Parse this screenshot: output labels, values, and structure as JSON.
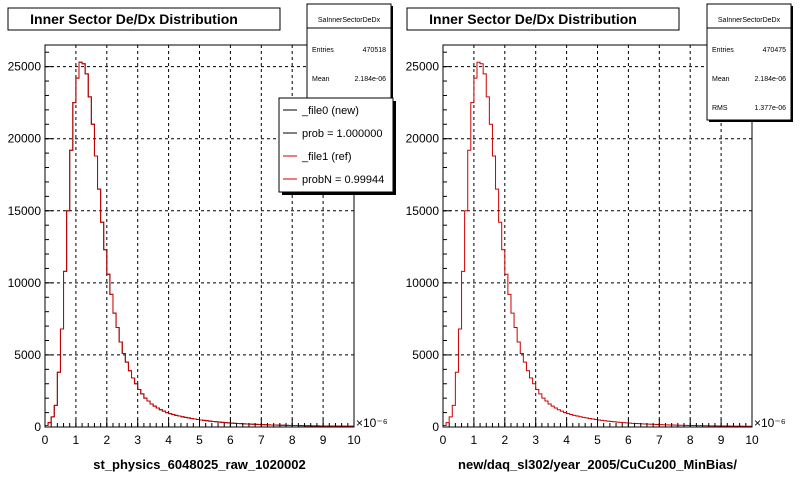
{
  "footer_text": "",
  "chart_data": [
    {
      "type": "histogram",
      "title": "Inner Sector De/Dx Distribution",
      "xlabel": "st_physics_6048025_raw_1020002",
      "ylabel": "",
      "x_exponent": "×10⁻⁶",
      "xlim": [
        0,
        10
      ],
      "ylim": [
        0,
        26500
      ],
      "xticks": [
        "0",
        "1",
        "2",
        "3",
        "4",
        "5",
        "6",
        "7",
        "8",
        "9",
        "10"
      ],
      "yticks": [
        "0",
        "5000",
        "10000",
        "15000",
        "20000",
        "25000"
      ],
      "grid": true,
      "stats": {
        "name": "SaInnerSectorDeDx",
        "rows": [
          {
            "label": "Entries",
            "value": "470518"
          },
          {
            "label": "Mean",
            "value": "2.184e-06"
          }
        ]
      },
      "legend": [
        {
          "label": "_file0 (new)",
          "color": "#000000"
        },
        {
          "label": "prob = 1.000000",
          "color": "#000000"
        },
        {
          "label": "_file1 (ref)",
          "color": "#cc0000"
        },
        {
          "label": "probN = 0.99944",
          "color": "#cc0000"
        }
      ],
      "series": [
        {
          "name": "_file0 (new)",
          "color": "#000000"
        },
        {
          "name": "_file1 (ref)",
          "color": "#cc0000"
        }
      ],
      "bin_width": 0.1,
      "bin_start": 0,
      "values": [
        100,
        300,
        700,
        1500,
        3800,
        6800,
        10800,
        15000,
        19200,
        22500,
        24200,
        25300,
        25200,
        24500,
        22900,
        21000,
        18800,
        16500,
        14200,
        12300,
        10600,
        9200,
        7900,
        6900,
        5900,
        5100,
        4500,
        3900,
        3400,
        3000,
        2600,
        2300,
        2000,
        1800,
        1600,
        1450,
        1320,
        1200,
        1100,
        1000,
        930,
        870,
        810,
        760,
        710,
        670,
        630,
        590,
        555,
        520,
        490,
        460,
        430,
        405,
        380,
        360,
        340,
        320,
        300,
        285,
        270,
        255,
        242,
        230,
        218,
        207,
        197,
        188,
        179,
        170,
        162,
        155,
        148,
        141,
        135,
        129,
        123,
        118,
        113,
        108,
        104,
        100,
        96,
        92,
        88,
        85,
        82,
        79,
        76,
        73,
        70,
        68,
        66,
        64,
        62,
        60,
        58,
        56,
        54,
        52
      ]
    },
    {
      "type": "histogram",
      "title": "Inner Sector De/Dx Distribution",
      "xlabel": "new/daq_sl302/year_2005/CuCu200_MinBias/",
      "ylabel": "",
      "x_exponent": "×10⁻⁶",
      "xlim": [
        0,
        10
      ],
      "ylim": [
        0,
        26500
      ],
      "xticks": [
        "0",
        "1",
        "2",
        "3",
        "4",
        "5",
        "6",
        "7",
        "8",
        "9",
        "10"
      ],
      "yticks": [
        "0",
        "5000",
        "10000",
        "15000",
        "20000",
        "25000"
      ],
      "grid": true,
      "stats": {
        "name": "SaInnerSectorDeDx",
        "rows": [
          {
            "label": "Entries",
            "value": "470475"
          },
          {
            "label": "Mean",
            "value": "2.184e-06"
          },
          {
            "label": "RMS",
            "value": "1.377e-06"
          }
        ]
      },
      "legend": [],
      "series": [
        {
          "name": "",
          "color": "#cc0000"
        }
      ],
      "bin_width": 0.1,
      "bin_start": 0,
      "values": [
        100,
        300,
        700,
        1500,
        3800,
        6800,
        10800,
        15000,
        19200,
        22500,
        24200,
        25300,
        25200,
        24500,
        22900,
        21000,
        18800,
        16500,
        14200,
        12300,
        10600,
        9200,
        7900,
        6900,
        5900,
        5100,
        4500,
        3900,
        3400,
        3000,
        2600,
        2300,
        2000,
        1800,
        1600,
        1450,
        1320,
        1200,
        1100,
        1000,
        930,
        870,
        810,
        760,
        710,
        670,
        630,
        590,
        555,
        520,
        490,
        460,
        430,
        405,
        380,
        360,
        340,
        320,
        300,
        285,
        270,
        255,
        242,
        230,
        218,
        207,
        197,
        188,
        179,
        170,
        162,
        155,
        148,
        141,
        135,
        129,
        123,
        118,
        113,
        108,
        104,
        100,
        96,
        92,
        88,
        85,
        82,
        79,
        76,
        73,
        70,
        68,
        66,
        64,
        62,
        60,
        58,
        56,
        54,
        52
      ]
    }
  ]
}
